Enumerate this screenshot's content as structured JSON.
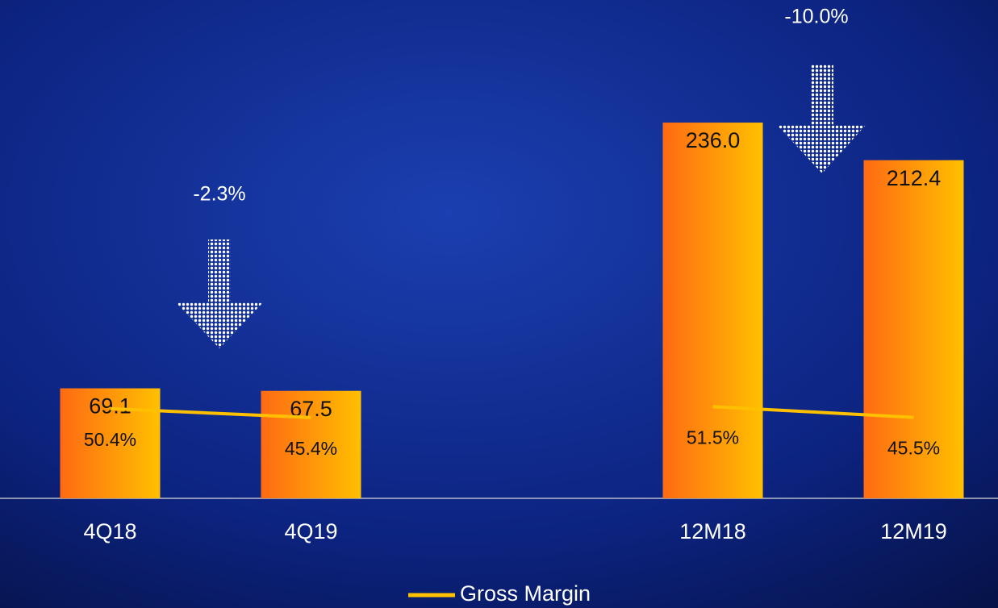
{
  "chart_data": {
    "type": "bar",
    "categories": [
      "4Q18",
      "4Q19",
      null,
      "12M18",
      "12M19"
    ],
    "series": [
      {
        "gradient": [
          "#ff6a13",
          "#ffc000"
        ],
        "values": [
          69.1,
          67.5,
          null,
          236.0,
          212.4
        ],
        "value_labels": [
          "69.1",
          "67.5",
          null,
          "236.0",
          "212.4"
        ]
      },
      {
        "name": "Gross Margin",
        "type": "line",
        "axis": "y2",
        "color": "#ffc000",
        "values": [
          50.4,
          45.4,
          null,
          51.5,
          45.5
        ],
        "value_labels": [
          "50.4%",
          "45.4%",
          null,
          "51.5%",
          "45.5%"
        ]
      }
    ],
    "ylim": [
      0,
      313
    ],
    "y2lim": [
      0,
      280
    ],
    "annotations": [
      {
        "text": "-2.3%"
      },
      {
        "text": "-10.0%"
      }
    ],
    "legend": "bottom"
  }
}
